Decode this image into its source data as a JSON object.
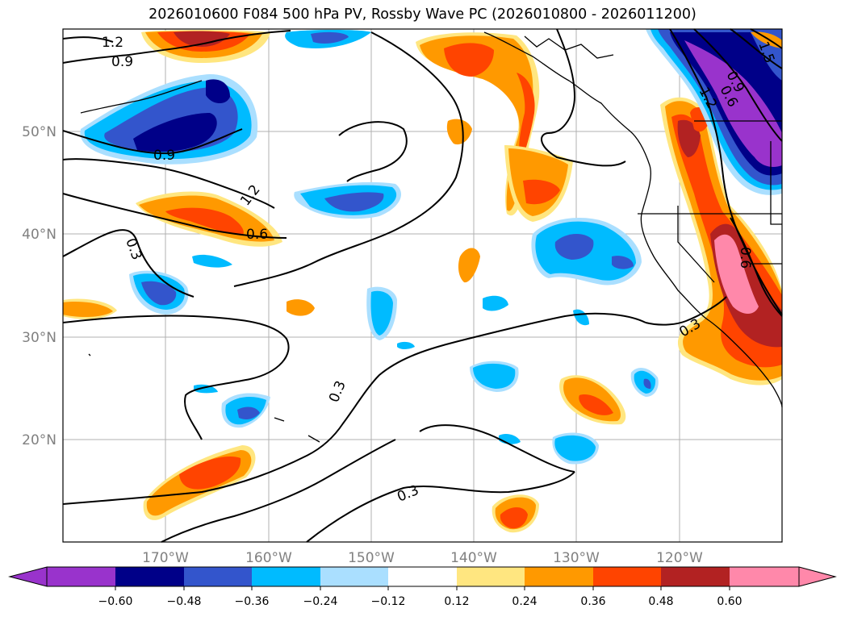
{
  "title": "2026010600 F084 500 hPa PV, Rossby Wave PC (2026010800 - 2026011200)",
  "axes": {
    "lon_ticks": [
      "170°W",
      "160°W",
      "150°W",
      "140°W",
      "130°W",
      "120°W"
    ],
    "lat_ticks": [
      "50°N",
      "40°N",
      "30°N",
      "20°N"
    ],
    "lon_range": [
      -180,
      -110
    ],
    "lat_range": [
      10,
      60
    ],
    "grid": true
  },
  "contour_labels": [
    "1.2",
    "0.9",
    "0.9",
    "1.2",
    "0.6",
    "0.3",
    "0.3",
    "0.3",
    "0.3",
    "0.9",
    "0.6",
    "1.2",
    "1.5",
    "0.6"
  ],
  "colorbar": {
    "ticks": [
      "−0.60",
      "−0.48",
      "−0.36",
      "−0.24",
      "−0.12",
      "0.12",
      "0.24",
      "0.36",
      "0.48",
      "0.60"
    ],
    "colors": [
      "#9933cc",
      "#000088",
      "#3355cc",
      "#00bbff",
      "#aadfff",
      "#ffffff",
      "#ffe680",
      "#ff9900",
      "#ff4400",
      "#b22222",
      "#ff88aa"
    ],
    "extend": "both"
  },
  "colors": {
    "grid": "#b0b0b0",
    "tick_text": "#808080",
    "contour": "#000000"
  }
}
